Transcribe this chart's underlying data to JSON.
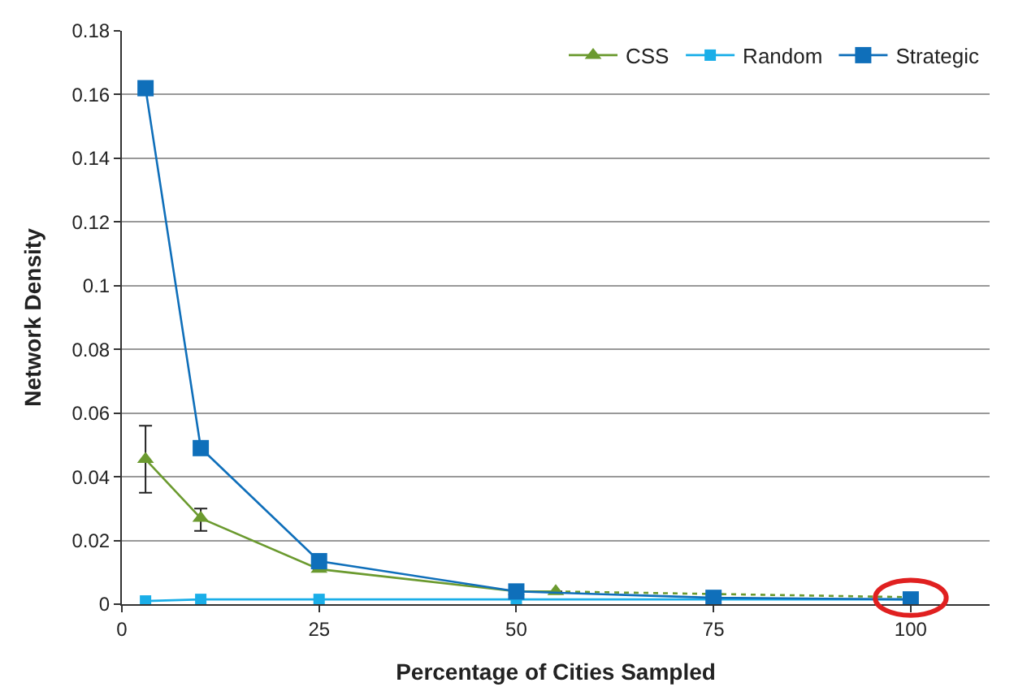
{
  "chart_data": {
    "type": "line",
    "xlabel": "Percentage of Cities Sampled",
    "ylabel": "Network Density",
    "xlim": [
      0,
      110
    ],
    "xticks": [
      0,
      25,
      50,
      75,
      100
    ],
    "ylim": [
      0,
      0.18
    ],
    "yticks": [
      0,
      0.02,
      0.04,
      0.06,
      0.08,
      0.1,
      0.12,
      0.14,
      0.16,
      0.18
    ],
    "grid": "y",
    "legend": "top right",
    "series": [
      {
        "name": "CSS",
        "color": "#6b9a2f",
        "marker": "triangle",
        "x": [
          3,
          10,
          25,
          50,
          55
        ],
        "values": [
          0.0455,
          0.027,
          0.011,
          0.004,
          0.004
        ],
        "errors": [
          [
            0.035,
            0.056
          ],
          [
            0.023,
            0.03
          ],
          null,
          null,
          null
        ]
      },
      {
        "color": "#6b9a2f",
        "line_style": "dotted",
        "x": [
          55,
          100
        ],
        "values": [
          0.004,
          0.0022
        ]
      },
      {
        "name": "Random",
        "color": "#1aaee8",
        "marker": "square",
        "x": [
          3,
          10,
          25,
          50,
          75,
          100
        ],
        "values": [
          0.001,
          0.0015,
          0.0015,
          0.0015,
          0.0015,
          0.0015
        ]
      },
      {
        "name": "Strategic",
        "color": "#0f6fba",
        "marker": "square",
        "x": [
          3,
          10,
          25,
          50,
          75,
          100
        ],
        "values": [
          0.162,
          0.049,
          0.0135,
          0.004,
          0.002,
          0.0015
        ]
      }
    ]
  }
}
